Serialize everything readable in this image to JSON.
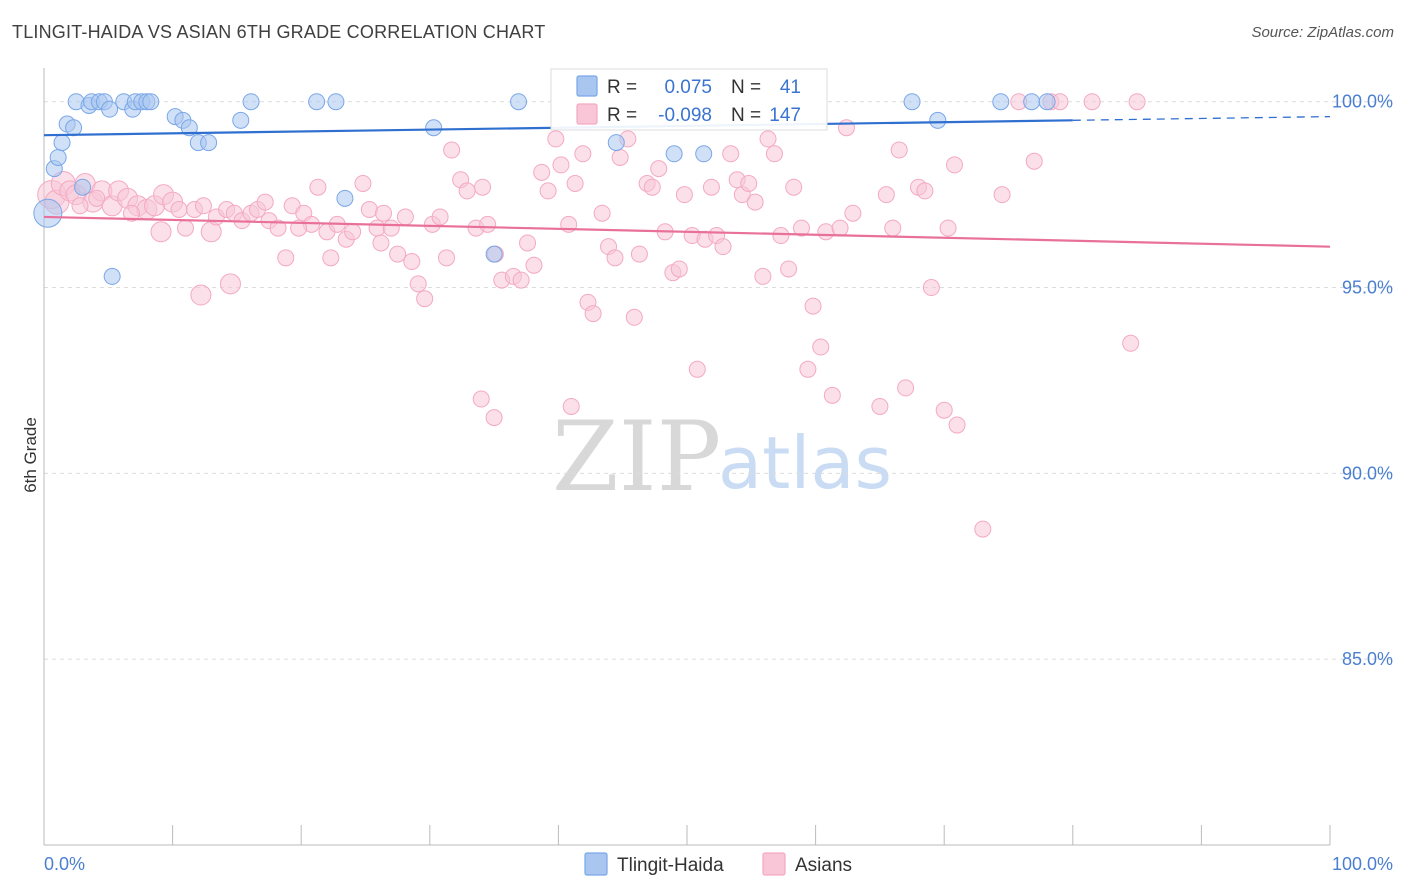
{
  "chart_data": {
    "type": "scatter",
    "title": "TLINGIT-HAIDA VS ASIAN 6TH GRADE CORRELATION CHART",
    "source": "Source: ZipAtlas.com",
    "xlabel": "",
    "ylabel": "6th Grade",
    "xlim": [
      0,
      100
    ],
    "ylim": [
      80.0,
      100.8
    ],
    "x_tick_labels": [
      "0.0%",
      "100.0%"
    ],
    "y_ticks": [
      85.0,
      90.0,
      95.0,
      100.0
    ],
    "y_tick_labels": [
      "85.0%",
      "90.0%",
      "95.0%",
      "100.0%"
    ],
    "grid": true,
    "legend_position": "bottom-center",
    "watermark": {
      "zip": "ZIP",
      "atlas": "atlas"
    },
    "stats": [
      {
        "r_label": "R =",
        "r": "0.075",
        "n_label": "N =",
        "n": "41",
        "color": "#7aa7e8"
      },
      {
        "r_label": "R =",
        "r": "-0.098",
        "n_label": "N =",
        "n": "147",
        "color": "#f4a9c2"
      }
    ],
    "series": [
      {
        "name": "Tlingit-Haida",
        "color": "#7aa7e8",
        "fill": "#a9c6f0",
        "line_color": "#2f6fd0",
        "trend": {
          "x0": 0,
          "y0": 99.1,
          "x1": 80,
          "y1": 99.5,
          "dash_to": 100,
          "dash_y": 99.6
        },
        "points": [
          [
            0.3,
            97.0,
            14
          ],
          [
            0.8,
            98.2,
            8
          ],
          [
            1.1,
            98.5,
            8
          ],
          [
            1.4,
            98.9,
            8
          ],
          [
            1.8,
            99.4,
            8
          ],
          [
            2.3,
            99.3,
            8
          ],
          [
            2.5,
            100.0,
            8
          ],
          [
            3.0,
            97.7,
            8
          ],
          [
            3.5,
            99.9,
            8
          ],
          [
            3.7,
            100.0,
            8
          ],
          [
            4.3,
            100.0,
            8
          ],
          [
            4.7,
            100.0,
            8
          ],
          [
            5.1,
            99.8,
            8
          ],
          [
            5.3,
            95.3,
            8
          ],
          [
            6.2,
            100.0,
            8
          ],
          [
            6.9,
            99.8,
            8
          ],
          [
            7.1,
            100.0,
            8
          ],
          [
            7.6,
            100.0,
            8
          ],
          [
            8.0,
            100.0,
            8
          ],
          [
            8.3,
            100.0,
            8
          ],
          [
            10.2,
            99.6,
            8
          ],
          [
            10.8,
            99.5,
            8
          ],
          [
            11.3,
            99.3,
            8
          ],
          [
            12.0,
            98.9,
            8
          ],
          [
            12.8,
            98.9,
            8
          ],
          [
            15.3,
            99.5,
            8
          ],
          [
            16.1,
            100.0,
            8
          ],
          [
            21.2,
            100.0,
            8
          ],
          [
            22.7,
            100.0,
            8
          ],
          [
            23.4,
            97.4,
            8
          ],
          [
            30.3,
            99.3,
            8
          ],
          [
            35.0,
            95.9,
            8
          ],
          [
            36.9,
            100.0,
            8
          ],
          [
            44.5,
            98.9,
            8
          ],
          [
            49.0,
            98.6,
            8
          ],
          [
            51.3,
            98.6,
            8
          ],
          [
            67.5,
            100.0,
            8
          ],
          [
            69.5,
            99.5,
            8
          ],
          [
            74.4,
            100.0,
            8
          ],
          [
            76.8,
            100.0,
            8
          ],
          [
            78.0,
            100.0,
            8
          ]
        ]
      },
      {
        "name": "Asians",
        "color": "#f4a9c2",
        "fill": "#f8c6d7",
        "line_color": "#e8709a",
        "trend": {
          "x0": 0,
          "y0": 96.9,
          "x1": 100,
          "y1": 96.1
        },
        "points": [
          [
            0.6,
            97.5,
            14
          ],
          [
            1.0,
            97.3,
            12
          ],
          [
            1.5,
            97.8,
            12
          ],
          [
            2.0,
            97.6,
            10
          ],
          [
            2.5,
            97.5,
            10
          ],
          [
            3.2,
            97.8,
            10
          ],
          [
            3.8,
            97.3,
            10
          ],
          [
            4.5,
            97.6,
            10
          ],
          [
            5.3,
            97.2,
            10
          ],
          [
            5.8,
            97.6,
            10
          ],
          [
            6.5,
            97.4,
            10
          ],
          [
            7.3,
            97.2,
            10
          ],
          [
            8.0,
            97.1,
            10
          ],
          [
            8.6,
            97.2,
            10
          ],
          [
            9.3,
            97.5,
            10
          ],
          [
            10.0,
            97.3,
            10
          ],
          [
            10.5,
            97.1,
            8
          ],
          [
            11.0,
            96.6,
            8
          ],
          [
            11.7,
            97.1,
            8
          ],
          [
            12.4,
            97.2,
            8
          ],
          [
            13.0,
            96.5,
            10
          ],
          [
            13.4,
            96.9,
            8
          ],
          [
            14.2,
            97.1,
            8
          ],
          [
            14.8,
            97.0,
            8
          ],
          [
            15.4,
            96.8,
            8
          ],
          [
            16.1,
            97.0,
            8
          ],
          [
            16.6,
            97.1,
            8
          ],
          [
            17.2,
            97.3,
            8
          ],
          [
            17.5,
            96.8,
            8
          ],
          [
            18.2,
            96.6,
            8
          ],
          [
            18.8,
            95.8,
            8
          ],
          [
            19.3,
            97.2,
            8
          ],
          [
            20.2,
            97.0,
            8
          ],
          [
            20.8,
            96.7,
            8
          ],
          [
            21.3,
            97.7,
            8
          ],
          [
            22.0,
            96.5,
            8
          ],
          [
            22.3,
            95.8,
            8
          ],
          [
            22.8,
            96.7,
            8
          ],
          [
            23.5,
            96.3,
            8
          ],
          [
            24.0,
            96.5,
            8
          ],
          [
            24.8,
            97.8,
            8
          ],
          [
            25.3,
            97.1,
            8
          ],
          [
            25.9,
            96.6,
            8
          ],
          [
            26.4,
            97.0,
            8
          ],
          [
            27.0,
            96.6,
            8
          ],
          [
            27.5,
            95.9,
            8
          ],
          [
            28.1,
            96.9,
            8
          ],
          [
            28.6,
            95.7,
            8
          ],
          [
            29.1,
            95.1,
            8
          ],
          [
            29.6,
            94.7,
            8
          ],
          [
            30.2,
            96.7,
            8
          ],
          [
            30.8,
            96.9,
            8
          ],
          [
            31.3,
            95.8,
            8
          ],
          [
            31.7,
            98.7,
            8
          ],
          [
            32.4,
            97.9,
            8
          ],
          [
            32.9,
            97.6,
            8
          ],
          [
            33.6,
            96.6,
            8
          ],
          [
            34.1,
            97.7,
            8
          ],
          [
            34.5,
            96.7,
            8
          ],
          [
            35.1,
            95.9,
            8
          ],
          [
            35.6,
            95.2,
            8
          ],
          [
            36.5,
            95.3,
            8
          ],
          [
            37.1,
            95.2,
            8
          ],
          [
            37.6,
            96.2,
            8
          ],
          [
            38.1,
            95.6,
            8
          ],
          [
            38.7,
            98.1,
            8
          ],
          [
            39.2,
            97.6,
            8
          ],
          [
            39.8,
            99.0,
            8
          ],
          [
            40.2,
            98.3,
            8
          ],
          [
            40.8,
            96.7,
            8
          ],
          [
            41.3,
            97.8,
            8
          ],
          [
            41.9,
            98.6,
            8
          ],
          [
            42.3,
            94.6,
            8
          ],
          [
            42.7,
            94.3,
            8
          ],
          [
            43.4,
            97.0,
            8
          ],
          [
            43.9,
            96.1,
            8
          ],
          [
            44.4,
            95.8,
            8
          ],
          [
            44.8,
            98.5,
            8
          ],
          [
            45.4,
            99.0,
            8
          ],
          [
            45.9,
            94.2,
            8
          ],
          [
            46.3,
            95.9,
            8
          ],
          [
            46.9,
            97.8,
            8
          ],
          [
            47.3,
            97.7,
            8
          ],
          [
            47.8,
            98.2,
            8
          ],
          [
            48.3,
            96.5,
            8
          ],
          [
            48.9,
            95.4,
            8
          ],
          [
            49.4,
            95.5,
            8
          ],
          [
            49.8,
            97.5,
            8
          ],
          [
            50.4,
            96.4,
            8
          ],
          [
            50.8,
            92.8,
            8
          ],
          [
            51.4,
            96.3,
            8
          ],
          [
            51.9,
            97.7,
            8
          ],
          [
            52.3,
            96.4,
            8
          ],
          [
            52.8,
            96.1,
            8
          ],
          [
            53.4,
            98.6,
            8
          ],
          [
            53.9,
            97.9,
            8
          ],
          [
            54.3,
            97.5,
            8
          ],
          [
            54.8,
            97.8,
            8
          ],
          [
            55.3,
            97.3,
            8
          ],
          [
            55.9,
            95.3,
            8
          ],
          [
            56.3,
            99.0,
            8
          ],
          [
            56.8,
            98.6,
            8
          ],
          [
            57.3,
            96.4,
            8
          ],
          [
            57.9,
            95.5,
            8
          ],
          [
            58.3,
            97.7,
            8
          ],
          [
            58.9,
            96.6,
            8
          ],
          [
            59.4,
            92.8,
            8
          ],
          [
            59.8,
            94.5,
            8
          ],
          [
            60.4,
            93.4,
            8
          ],
          [
            60.8,
            96.5,
            8
          ],
          [
            61.3,
            92.1,
            8
          ],
          [
            61.9,
            96.6,
            8
          ],
          [
            62.4,
            99.3,
            8
          ],
          [
            62.9,
            97.0,
            8
          ],
          [
            34.0,
            92.0,
            8
          ],
          [
            35.0,
            91.5,
            8
          ],
          [
            41.0,
            91.8,
            8
          ],
          [
            65.0,
            91.8,
            8
          ],
          [
            67.0,
            92.3,
            8
          ],
          [
            70.0,
            91.7,
            8
          ],
          [
            71.0,
            91.3,
            8
          ],
          [
            73.0,
            88.5,
            8
          ],
          [
            65.5,
            97.5,
            8
          ],
          [
            66.0,
            96.6,
            8
          ],
          [
            66.5,
            98.7,
            8
          ],
          [
            68.0,
            97.7,
            8
          ],
          [
            68.5,
            97.6,
            8
          ],
          [
            69.0,
            95.0,
            8
          ],
          [
            70.3,
            96.6,
            8
          ],
          [
            70.8,
            98.3,
            8
          ],
          [
            74.5,
            97.5,
            8
          ],
          [
            77.0,
            98.4,
            8
          ],
          [
            75.8,
            100.0,
            8
          ],
          [
            78.3,
            100.0,
            8
          ],
          [
            79.0,
            100.0,
            8
          ],
          [
            81.5,
            100.0,
            8
          ],
          [
            85.0,
            100.0,
            8
          ],
          [
            84.5,
            93.5,
            8
          ],
          [
            14.5,
            95.1,
            10
          ],
          [
            12.2,
            94.8,
            10
          ],
          [
            9.1,
            96.5,
            10
          ],
          [
            6.8,
            97.0,
            8
          ],
          [
            4.1,
            97.4,
            8
          ],
          [
            2.8,
            97.2,
            8
          ],
          [
            19.8,
            96.6,
            8
          ],
          [
            26.2,
            96.2,
            8
          ]
        ]
      }
    ]
  }
}
